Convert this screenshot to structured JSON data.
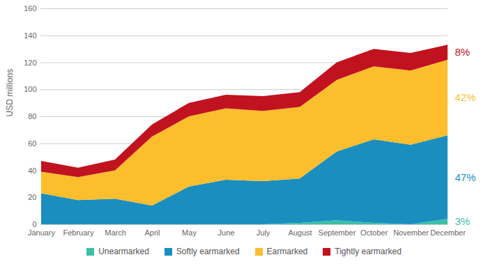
{
  "chart_data": {
    "type": "area",
    "stacked": true,
    "categories": [
      "January",
      "February",
      "March",
      "April",
      "May",
      "June",
      "July",
      "August",
      "September",
      "October",
      "November",
      "December"
    ],
    "series": [
      {
        "name": "Unearmarked",
        "color": "#3dbfa6",
        "values": [
          0,
          0,
          0,
          0,
          0,
          0,
          0,
          1,
          3,
          1,
          0,
          4
        ]
      },
      {
        "name": "Softly earmarked",
        "color": "#1a8fbf",
        "values": [
          23,
          18,
          19,
          14,
          28,
          33,
          32,
          33,
          51,
          62,
          59,
          62
        ]
      },
      {
        "name": "Earmarked",
        "color": "#fcbe2c",
        "values": [
          16,
          17,
          21,
          51,
          52,
          53,
          52,
          53,
          53,
          54,
          55,
          56
        ]
      },
      {
        "name": "Tightly earmarked",
        "color": "#c1121f",
        "values": [
          8,
          7,
          8,
          9,
          10,
          10,
          11,
          11,
          13,
          13,
          13,
          11
        ]
      }
    ],
    "ylabel": "USD millions",
    "ylim": [
      0,
      160
    ],
    "yticks": [
      0,
      20,
      40,
      60,
      80,
      100,
      120,
      140,
      160
    ],
    "grid": true,
    "legend": "bottom",
    "annotations": [
      {
        "text": "8%",
        "series": "Tightly earmarked"
      },
      {
        "text": "42%",
        "series": "Earmarked"
      },
      {
        "text": "47%",
        "series": "Softly earmarked"
      },
      {
        "text": "3%",
        "series": "Unearmarked"
      }
    ]
  }
}
